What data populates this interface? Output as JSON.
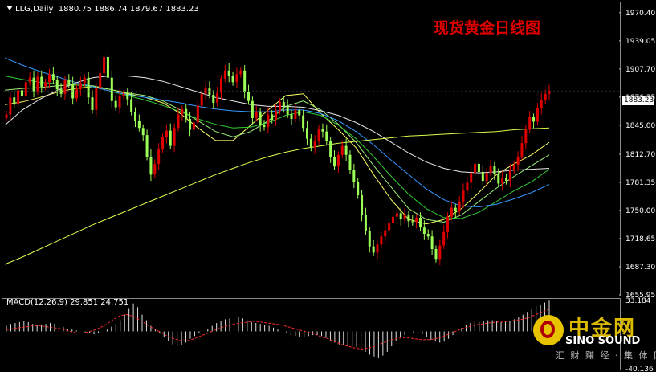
{
  "header": {
    "symbol": "LLG,Daily",
    "ohlc": "1880.75 1886.74 1879.67 1883.23"
  },
  "title": "现货黄金日线图",
  "price_tag": "1883.23",
  "macd_header": "MACD(12,26,9) 29.851 24.751",
  "watermark": {
    "cn": "中金网",
    "en": "SINO SOUND",
    "sub": "汇 财 赚 经 · 集 体 网"
  },
  "colors": {
    "bull_candle": "#e00000",
    "bear_candle": "#9cff57",
    "ma_yellow": "#ffff66",
    "ma_lightgreen": "#9cf07a",
    "ma_green": "#33cc33",
    "ma_blue": "#3399ff",
    "ma_white": "#e8e8e8",
    "ma_lime": "#d8ff4a",
    "macd_signal": "#ff2a2a",
    "macd_hist": "#e0e0e0"
  },
  "chart_data": [
    {
      "type": "candlestick",
      "title": "现货黄金日线图",
      "y_axis_ticks": [
        "1970.40",
        "1939.05",
        "1907.70",
        "1876.35",
        "1845.00",
        "1812.70",
        "1781.35",
        "1750.00",
        "1718.65",
        "1687.30",
        "1655.95"
      ],
      "ylim": [
        1655.95,
        1981
      ],
      "close_series": [
        1857,
        1876,
        1868,
        1884,
        1878,
        1893,
        1898,
        1883,
        1899,
        1888,
        1893,
        1902,
        1895,
        1885,
        1880,
        1896,
        1891,
        1875,
        1885,
        1892,
        1898,
        1876,
        1862,
        1887,
        1903,
        1921,
        1898,
        1872,
        1865,
        1878,
        1880,
        1874,
        1860,
        1850,
        1842,
        1834,
        1810,
        1790,
        1802,
        1818,
        1832,
        1839,
        1822,
        1842,
        1857,
        1863,
        1852,
        1840,
        1848,
        1867,
        1880,
        1886,
        1879,
        1870,
        1881,
        1897,
        1906,
        1900,
        1893,
        1902,
        1906,
        1882,
        1872,
        1853,
        1860,
        1845,
        1843,
        1857,
        1851,
        1861,
        1871,
        1866,
        1857,
        1852,
        1862,
        1856,
        1842,
        1830,
        1820,
        1827,
        1841,
        1838,
        1827,
        1810,
        1799,
        1812,
        1822,
        1812,
        1795,
        1782,
        1767,
        1745,
        1727,
        1710,
        1703,
        1712,
        1721,
        1728,
        1736,
        1743,
        1747,
        1740,
        1745,
        1738,
        1737,
        1742,
        1731,
        1724,
        1721,
        1707,
        1696,
        1711,
        1726,
        1743,
        1753,
        1749,
        1760,
        1772,
        1781,
        1792,
        1802,
        1793,
        1783,
        1792,
        1800,
        1791,
        1780,
        1786,
        1783,
        1795,
        1801,
        1810,
        1825,
        1840,
        1854,
        1849,
        1864,
        1873,
        1880,
        1883
      ],
      "moving_averages": [
        {
          "color": "#ffff66",
          "values": [
            1868,
            1871,
            1876,
            1882,
            1886,
            1888,
            1885,
            1880,
            1876,
            1870,
            1858,
            1842,
            1828,
            1828,
            1845,
            1862,
            1878,
            1880,
            1858,
            1840,
            1820,
            1790,
            1762,
            1740,
            1735,
            1740,
            1752,
            1770,
            1790,
            1802,
            1812,
            1826
          ]
        },
        {
          "color": "#9cf07a",
          "values": [
            1884,
            1886,
            1887,
            1889,
            1890,
            1889,
            1885,
            1881,
            1878,
            1872,
            1862,
            1850,
            1838,
            1832,
            1838,
            1850,
            1866,
            1872,
            1862,
            1846,
            1826,
            1800,
            1776,
            1752,
            1740,
            1737,
            1745,
            1760,
            1775,
            1788,
            1800,
            1812
          ]
        },
        {
          "color": "#33cc33",
          "values": [
            1900,
            1896,
            1893,
            1891,
            1890,
            1888,
            1883,
            1878,
            1873,
            1867,
            1860,
            1852,
            1846,
            1842,
            1843,
            1848,
            1856,
            1860,
            1856,
            1845,
            1830,
            1810,
            1788,
            1768,
            1752,
            1742,
            1741,
            1748,
            1760,
            1772,
            1782,
            1796
          ]
        },
        {
          "color": "#3399ff",
          "values": [
            1920,
            1912,
            1905,
            1899,
            1893,
            1888,
            1883,
            1879,
            1876,
            1873,
            1870,
            1866,
            1863,
            1861,
            1860,
            1860,
            1862,
            1862,
            1858,
            1850,
            1838,
            1823,
            1806,
            1790,
            1774,
            1762,
            1755,
            1754,
            1757,
            1763,
            1770,
            1779
          ]
        },
        {
          "color": "#e8e8e8",
          "values": [
            1845,
            1862,
            1874,
            1884,
            1892,
            1898,
            1900,
            1900,
            1898,
            1894,
            1888,
            1882,
            1876,
            1872,
            1868,
            1866,
            1866,
            1865,
            1861,
            1856,
            1848,
            1838,
            1826,
            1814,
            1804,
            1797,
            1793,
            1792,
            1793,
            1795,
            1796,
            1797
          ]
        },
        {
          "color": "#d8ff4a",
          "values": [
            1690,
            1698,
            1707,
            1716,
            1725,
            1734,
            1742,
            1750,
            1758,
            1766,
            1774,
            1782,
            1790,
            1797,
            1804,
            1810,
            1815,
            1819,
            1822,
            1825,
            1827,
            1829,
            1831,
            1833,
            1834,
            1835,
            1836,
            1837,
            1838,
            1840,
            1841,
            1842
          ]
        }
      ]
    },
    {
      "type": "bar",
      "title": "MACD(12,26,9)",
      "macd": 29.851,
      "signal": 24.751,
      "y_axis_ticks": [
        "33.184",
        "-40.136"
      ],
      "ylim": [
        -40.136,
        33.184
      ],
      "histogram": [
        6,
        8,
        9,
        10,
        11,
        10,
        8,
        7,
        7,
        8,
        9,
        8,
        6,
        5,
        3,
        2,
        1,
        0,
        -1,
        -2,
        -3,
        -2,
        0,
        2,
        5,
        8,
        12,
        18,
        25,
        30,
        26,
        18,
        12,
        6,
        2,
        -2,
        -6,
        -10,
        -14,
        -16,
        -15,
        -12,
        -8,
        -5,
        -2,
        0,
        3,
        6,
        9,
        11,
        13,
        14,
        15,
        16,
        14,
        12,
        10,
        9,
        8,
        7,
        6,
        4,
        2,
        0,
        -2,
        -4,
        -5,
        -6,
        -6,
        -5,
        -4,
        -4,
        -5,
        -7,
        -10,
        -12,
        -14,
        -15,
        -16,
        -16,
        -17,
        -19,
        -22,
        -25,
        -27,
        -28,
        -26,
        -22,
        -16,
        -10,
        -6,
        -4,
        -3,
        -2,
        -1,
        -3,
        -6,
        -9,
        -11,
        -12,
        -11,
        -8,
        -4,
        0,
        4,
        7,
        9,
        10,
        10,
        11,
        12,
        12,
        11,
        10,
        10,
        11,
        13,
        15,
        18,
        21,
        24,
        27,
        29,
        31,
        33
      ],
      "signal_line": [
        2,
        3,
        4,
        5,
        6,
        6,
        5,
        4,
        3,
        1,
        -1,
        -2,
        -1,
        1,
        4,
        8,
        13,
        17,
        18,
        16,
        12,
        7,
        3,
        -1,
        -5,
        -8,
        -10,
        -10,
        -8,
        -5,
        -2,
        1,
        4,
        6,
        8,
        9,
        10,
        11,
        10,
        9,
        8,
        7,
        5,
        3,
        1,
        -1,
        -3,
        -6,
        -8,
        -11,
        -14,
        -16,
        -18,
        -19,
        -18,
        -16,
        -13,
        -10,
        -8,
        -7,
        -7,
        -8,
        -9,
        -9,
        -8,
        -6,
        -3,
        0,
        3,
        5,
        7,
        8,
        9,
        10,
        10,
        11,
        12,
        13,
        15,
        18,
        21,
        24
      ]
    }
  ]
}
